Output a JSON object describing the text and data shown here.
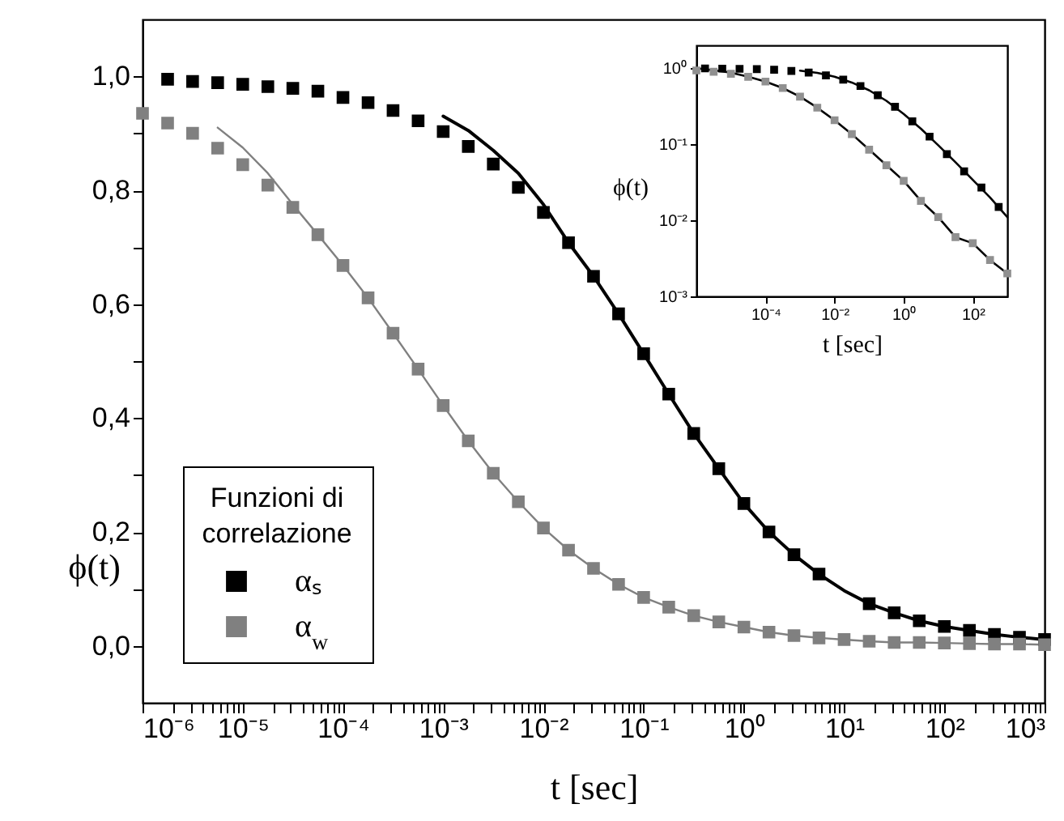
{
  "chart_data": [
    {
      "type": "scatter",
      "xlabel": "t [sec]",
      "ylabel": "ϕ(t)",
      "legend_title": "Funzioni di correlazione",
      "legend": "bottom left",
      "log": "x",
      "xlim": [
        1e-06,
        1000
      ],
      "ylim": [
        -0.1,
        1.1
      ],
      "xticks": [
        {
          "value": 1e-06,
          "label": "10⁻⁶"
        },
        {
          "value": 1e-05,
          "label": "10⁻⁵"
        },
        {
          "value": 0.0001,
          "label": "10⁻⁴"
        },
        {
          "value": 0.001,
          "label": "10⁻³"
        },
        {
          "value": 0.01,
          "label": "10⁻²"
        },
        {
          "value": 0.1,
          "label": "10⁻¹"
        },
        {
          "value": 1,
          "label": "10⁰"
        },
        {
          "value": 10,
          "label": "10¹"
        },
        {
          "value": 100,
          "label": "10²"
        },
        {
          "value": 1000,
          "label": "10³"
        },
        {
          "value": 2e-06,
          "label": null
        },
        {
          "value": 3e-06,
          "label": null
        },
        {
          "value": 4e-06,
          "label": null
        },
        {
          "value": 5e-06,
          "label": null
        },
        {
          "value": 6e-06,
          "label": null
        },
        {
          "value": 7e-06,
          "label": null
        },
        {
          "value": 8e-06,
          "label": null
        },
        {
          "value": 9e-06,
          "label": null
        },
        {
          "value": 2e-05,
          "label": null
        },
        {
          "value": 3e-05,
          "label": null
        },
        {
          "value": 4e-05,
          "label": null
        },
        {
          "value": 5e-05,
          "label": null
        },
        {
          "value": 6e-05,
          "label": null
        },
        {
          "value": 7e-05,
          "label": null
        },
        {
          "value": 8e-05,
          "label": null
        },
        {
          "value": 9e-05,
          "label": null
        },
        {
          "value": 0.0002,
          "label": null
        },
        {
          "value": 0.0003,
          "label": null
        },
        {
          "value": 0.0004,
          "label": null
        },
        {
          "value": 0.0005,
          "label": null
        },
        {
          "value": 0.0006,
          "label": null
        },
        {
          "value": 0.0007,
          "label": null
        },
        {
          "value": 0.0008,
          "label": null
        },
        {
          "value": 0.0009,
          "label": null
        },
        {
          "value": 0.002,
          "label": null
        },
        {
          "value": 0.003,
          "label": null
        },
        {
          "value": 0.004,
          "label": null
        },
        {
          "value": 0.005,
          "label": null
        },
        {
          "value": 0.006,
          "label": null
        },
        {
          "value": 0.007,
          "label": null
        },
        {
          "value": 0.008,
          "label": null
        },
        {
          "value": 0.009,
          "label": null
        },
        {
          "value": 0.02,
          "label": null
        },
        {
          "value": 0.03,
          "label": null
        },
        {
          "value": 0.04,
          "label": null
        },
        {
          "value": 0.05,
          "label": null
        },
        {
          "value": 0.06,
          "label": null
        },
        {
          "value": 0.07,
          "label": null
        },
        {
          "value": 0.08,
          "label": null
        },
        {
          "value": 0.09,
          "label": null
        },
        {
          "value": 0.2,
          "label": null
        },
        {
          "value": 0.3,
          "label": null
        },
        {
          "value": 0.4,
          "label": null
        },
        {
          "value": 0.5,
          "label": null
        },
        {
          "value": 0.6,
          "label": null
        },
        {
          "value": 0.7,
          "label": null
        },
        {
          "value": 0.8,
          "label": null
        },
        {
          "value": 0.9,
          "label": null
        },
        {
          "value": 2,
          "label": null
        },
        {
          "value": 3,
          "label": null
        },
        {
          "value": 4,
          "label": null
        },
        {
          "value": 5,
          "label": null
        },
        {
          "value": 6,
          "label": null
        },
        {
          "value": 7,
          "label": null
        },
        {
          "value": 8,
          "label": null
        },
        {
          "value": 9,
          "label": null
        },
        {
          "value": 20,
          "label": null
        },
        {
          "value": 30,
          "label": null
        },
        {
          "value": 40,
          "label": null
        },
        {
          "value": 50,
          "label": null
        },
        {
          "value": 60,
          "label": null
        },
        {
          "value": 70,
          "label": null
        },
        {
          "value": 80,
          "label": null
        },
        {
          "value": 90,
          "label": null
        },
        {
          "value": 200,
          "label": null
        },
        {
          "value": 300,
          "label": null
        },
        {
          "value": 400,
          "label": null
        },
        {
          "value": 500,
          "label": null
        },
        {
          "value": 600,
          "label": null
        },
        {
          "value": 700,
          "label": null
        },
        {
          "value": 800,
          "label": null
        },
        {
          "value": 900,
          "label": null
        }
      ],
      "yticks": [
        {
          "value": 0,
          "label": "0,0"
        },
        {
          "value": 0.2,
          "label": "0,2"
        },
        {
          "value": 0.4,
          "label": "0,4"
        },
        {
          "value": 0.6,
          "label": "0,6"
        },
        {
          "value": 0.8,
          "label": "0,8"
        },
        {
          "value": 1,
          "label": "1,0"
        },
        {
          "value": 0.1,
          "label": null
        },
        {
          "value": 0.3,
          "label": null
        },
        {
          "value": 0.5,
          "label": null
        },
        {
          "value": 0.7,
          "label": null
        },
        {
          "value": 0.9,
          "label": null
        }
      ],
      "series": [
        {
          "name": "αₛ",
          "marker": "square",
          "color": "#000000",
          "x": [
            1.78e-06,
            3.16e-06,
            5.62e-06,
            1e-05,
            1.78e-05,
            3.16e-05,
            5.62e-05,
            0.0001,
            0.000178,
            0.000316,
            0.000562,
            0.001,
            0.00178,
            0.00316,
            0.00562,
            0.01,
            0.0178,
            0.0316,
            0.0562,
            0.1,
            0.178,
            0.316,
            0.562,
            1,
            1.78,
            3.16,
            5.62,
            17.8,
            31.6,
            56.2,
            100,
            178,
            316,
            562,
            1000
          ],
          "values": [
            0.995,
            0.991,
            0.989,
            0.986,
            0.982,
            0.979,
            0.974,
            0.963,
            0.954,
            0.94,
            0.922,
            0.903,
            0.877,
            0.846,
            0.805,
            0.761,
            0.708,
            0.649,
            0.583,
            0.513,
            0.442,
            0.373,
            0.311,
            0.25,
            0.2,
            0.16,
            0.126,
            0.074,
            0.058,
            0.044,
            0.034,
            0.027,
            0.02,
            0.015,
            0.011
          ]
        },
        {
          "name": "α$_{w}$",
          "marker": "square",
          "color": "#808080",
          "x": [
            1e-06,
            1.78e-06,
            3.16e-06,
            5.62e-06,
            1e-05,
            1.78e-05,
            3.16e-05,
            5.62e-05,
            0.0001,
            0.000178,
            0.000316,
            0.000562,
            0.001,
            0.00178,
            0.00316,
            0.00562,
            0.01,
            0.0178,
            0.0316,
            0.0562,
            0.1,
            0.178,
            0.316,
            0.562,
            1,
            1.78,
            3.16,
            5.62,
            10,
            17.8,
            31.6,
            56.2,
            100,
            178,
            316,
            562,
            1000
          ],
          "values": [
            0.935,
            0.918,
            0.9,
            0.874,
            0.845,
            0.809,
            0.77,
            0.722,
            0.668,
            0.611,
            0.549,
            0.486,
            0.422,
            0.36,
            0.303,
            0.253,
            0.207,
            0.168,
            0.136,
            0.108,
            0.085,
            0.068,
            0.053,
            0.042,
            0.033,
            0.024,
            0.018,
            0.014,
            0.011,
            0.008,
            0.006,
            0.006,
            0.005,
            0.004,
            0.003,
            0.003,
            0.002
          ]
        },
        {
          "type": "line",
          "color": "#000000",
          "x": [
            0.001,
            0.00178,
            0.00316,
            0.00562,
            0.01,
            0.0178,
            0.0316,
            0.0562,
            0.1,
            0.178,
            0.316,
            0.562,
            1,
            1.78,
            3.16,
            5.62,
            10,
            17.8,
            31.6,
            56.2,
            100,
            178,
            316,
            562,
            1000
          ],
          "values": [
            0.93,
            0.905,
            0.87,
            0.83,
            0.775,
            0.708,
            0.649,
            0.583,
            0.513,
            0.442,
            0.373,
            0.311,
            0.25,
            0.2,
            0.16,
            0.126,
            0.097,
            0.074,
            0.058,
            0.044,
            0.034,
            0.027,
            0.02,
            0.015,
            0.011
          ]
        },
        {
          "type": "line",
          "color": "#808080",
          "x": [
            5.62e-06,
            1e-05,
            1.78e-05,
            3.16e-05,
            5.62e-05,
            0.0001,
            0.000178,
            0.000316,
            0.000562,
            0.001,
            0.00178,
            0.00316,
            0.00562,
            0.01,
            0.0178,
            0.0316,
            0.0562,
            0.1,
            0.178,
            0.316,
            0.562,
            1,
            1.78,
            3.16,
            5.62,
            10,
            17.8,
            31.6,
            56.2,
            100,
            178,
            316,
            562,
            1000
          ],
          "values": [
            0.91,
            0.875,
            0.83,
            0.775,
            0.722,
            0.668,
            0.611,
            0.549,
            0.486,
            0.422,
            0.36,
            0.303,
            0.253,
            0.207,
            0.168,
            0.136,
            0.108,
            0.085,
            0.068,
            0.053,
            0.042,
            0.033,
            0.024,
            0.018,
            0.014,
            0.011,
            0.008,
            0.006,
            0.006,
            0.005,
            0.004,
            0.003,
            0.003,
            0.002
          ]
        }
      ]
    },
    {
      "type": "scatter",
      "xlabel": "t [sec]",
      "ylabel": "ϕ(t)",
      "log": "xy",
      "xlim": [
        1e-06,
        1000
      ],
      "ylim": [
        0.001,
        2
      ],
      "xticks": [
        {
          "value": 0.0001,
          "label": "10⁻⁴"
        },
        {
          "value": 0.01,
          "label": "10⁻²"
        },
        {
          "value": 1,
          "label": "10⁰"
        },
        {
          "value": 100,
          "label": "10²"
        }
      ],
      "yticks": [
        {
          "value": 0.001,
          "label": "10⁻³"
        },
        {
          "value": 0.01,
          "label": "10⁻²"
        },
        {
          "value": 0.1,
          "label": "10⁻¹"
        },
        {
          "value": 1,
          "label": "10⁰"
        }
      ],
      "series": [
        {
          "marker": "square",
          "color": "#000000",
          "x": [
            1.78e-06,
            5.62e-06,
            1.78e-05,
            5.62e-05,
            0.000178,
            0.000562,
            0.00178,
            0.00562,
            0.0178,
            0.0562,
            0.178,
            0.562,
            1.78,
            5.62,
            17.8,
            56.2,
            178,
            562
          ],
          "values": [
            0.995,
            0.989,
            0.982,
            0.974,
            0.954,
            0.922,
            0.877,
            0.805,
            0.708,
            0.583,
            0.442,
            0.311,
            0.2,
            0.126,
            0.074,
            0.044,
            0.027,
            0.015
          ]
        },
        {
          "marker": "square",
          "color": "#909090",
          "x": [
            1e-06,
            3.16e-06,
            1e-05,
            3.16e-05,
            0.0001,
            0.000316,
            0.001,
            0.00316,
            0.01,
            0.0316,
            0.1,
            0.316,
            1,
            3.16,
            10,
            31.6,
            100,
            316,
            1000
          ],
          "values": [
            0.935,
            0.9,
            0.845,
            0.77,
            0.668,
            0.549,
            0.422,
            0.303,
            0.207,
            0.136,
            0.085,
            0.053,
            0.033,
            0.018,
            0.011,
            0.006,
            0.005,
            0.003,
            0.002
          ]
        },
        {
          "type": "line",
          "color": "#000000",
          "x": [
            0.001,
            0.00316,
            0.01,
            0.0316,
            0.1,
            0.316,
            1,
            3.16,
            10,
            31.6,
            100,
            316,
            1000
          ],
          "values": [
            0.93,
            0.87,
            0.775,
            0.649,
            0.513,
            0.373,
            0.25,
            0.16,
            0.097,
            0.058,
            0.034,
            0.02,
            0.011
          ]
        },
        {
          "type": "line",
          "color": "#000000",
          "x": [
            1e-06,
            5.62e-06,
            1e-05,
            3.16e-05,
            0.0001,
            0.000316,
            0.001,
            0.00316,
            0.01,
            0.0316,
            0.1,
            0.316,
            1,
            3.16,
            10,
            31.6,
            100,
            316,
            1000
          ],
          "values": [
            1,
            0.91,
            0.875,
            0.775,
            0.668,
            0.549,
            0.422,
            0.303,
            0.207,
            0.136,
            0.085,
            0.053,
            0.033,
            0.018,
            0.011,
            0.006,
            0.005,
            0.003,
            0.002
          ]
        }
      ]
    }
  ]
}
